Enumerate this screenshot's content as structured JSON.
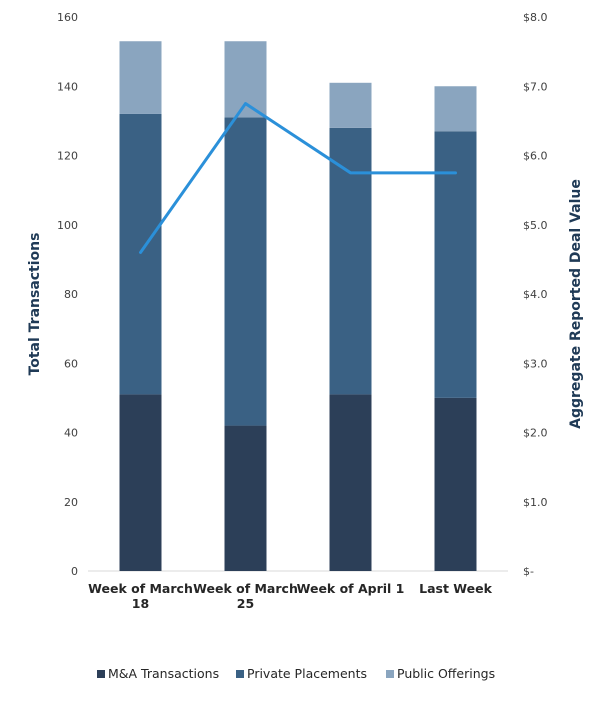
{
  "chart_data": {
    "type": "bar",
    "stacked": true,
    "categories": [
      [
        "Week of March",
        "18"
      ],
      [
        "Week of March",
        "25"
      ],
      [
        "Week of April 1"
      ],
      [
        "Last Week"
      ]
    ],
    "series": [
      {
        "name": "M&A Transactions",
        "values": [
          51,
          42,
          51,
          50
        ],
        "color": "#2c3f58"
      },
      {
        "name": "Private Placements",
        "values": [
          81,
          89,
          77,
          77
        ],
        "color": "#3a6184"
      },
      {
        "name": "Public Offerings",
        "values": [
          21,
          22,
          13,
          13
        ],
        "color": "#8aa5bf"
      }
    ],
    "line_series": {
      "axis": "right",
      "values": [
        4.6,
        6.75,
        5.75,
        5.75
      ],
      "color": "#2b90d9"
    },
    "ylabel": "Total Transactions",
    "y2label": "Aggregate Reported Deal Value",
    "ylim": [
      0,
      160
    ],
    "y2lim": [
      0,
      8
    ],
    "yticks": [
      "0",
      "20",
      "40",
      "60",
      "80",
      "100",
      "120",
      "140",
      "160"
    ],
    "y2ticks": [
      "$-",
      "$1.0",
      "$2.0",
      "$3.0",
      "$4.0",
      "$5.0",
      "$6.0",
      "$7.0",
      "$8.0"
    ],
    "legend_position": "bottom",
    "grid": false
  }
}
